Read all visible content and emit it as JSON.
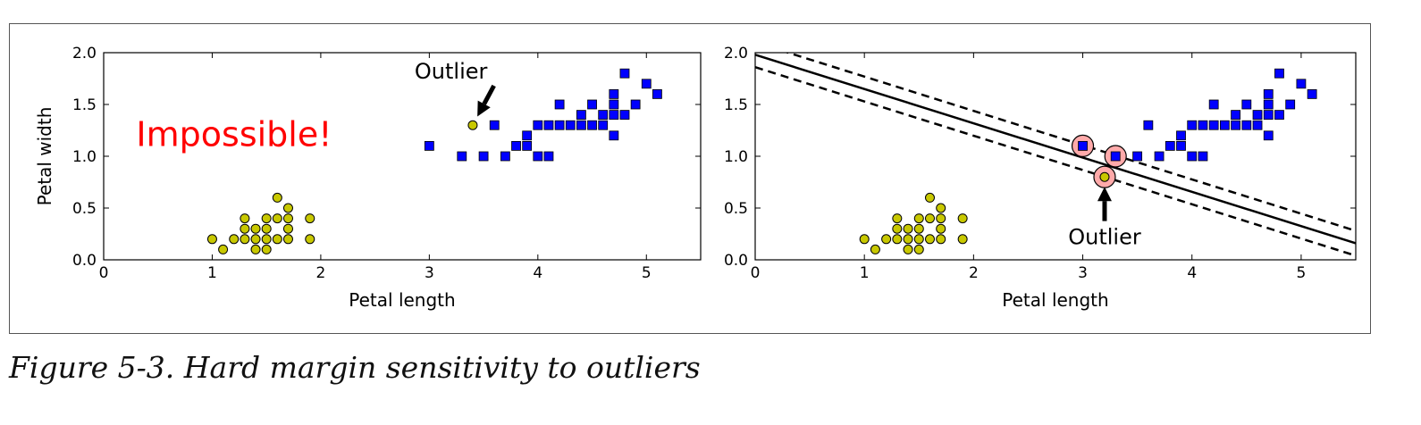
{
  "caption": "Figure 5-3. Hard margin sensitivity to outliers",
  "colors": {
    "class_yellow": "#c8c800",
    "class_blue": "#0000ff",
    "support_highlight": "#ffaaaa",
    "impossible_text": "#ff0000"
  },
  "chart_data": [
    {
      "type": "scatter",
      "title": "",
      "xlabel": "Petal length",
      "ylabel": "Petal width",
      "xlim": [
        0,
        5.5
      ],
      "ylim": [
        0,
        2.0
      ],
      "xticks": [
        "0",
        "1",
        "2",
        "3",
        "4",
        "5"
      ],
      "yticks": [
        "0.0",
        "0.5",
        "1.0",
        "1.5",
        "2.0"
      ],
      "grid": false,
      "series": [
        {
          "marker": "circle",
          "color": "#c8c800",
          "points": [
            [
              1.0,
              0.2
            ],
            [
              1.1,
              0.1
            ],
            [
              1.2,
              0.2
            ],
            [
              1.3,
              0.2
            ],
            [
              1.3,
              0.3
            ],
            [
              1.3,
              0.4
            ],
            [
              1.4,
              0.1
            ],
            [
              1.4,
              0.2
            ],
            [
              1.4,
              0.3
            ],
            [
              1.5,
              0.1
            ],
            [
              1.5,
              0.2
            ],
            [
              1.5,
              0.3
            ],
            [
              1.5,
              0.4
            ],
            [
              1.6,
              0.2
            ],
            [
              1.6,
              0.6
            ],
            [
              1.6,
              0.4
            ],
            [
              1.7,
              0.2
            ],
            [
              1.7,
              0.3
            ],
            [
              1.7,
              0.4
            ],
            [
              1.7,
              0.5
            ],
            [
              1.9,
              0.2
            ],
            [
              1.9,
              0.4
            ],
            [
              3.4,
              1.3
            ]
          ]
        },
        {
          "marker": "square",
          "color": "#0000ff",
          "points": [
            [
              3.0,
              1.1
            ],
            [
              3.3,
              1.0
            ],
            [
              3.5,
              1.0
            ],
            [
              3.6,
              1.3
            ],
            [
              3.7,
              1.0
            ],
            [
              3.8,
              1.1
            ],
            [
              3.9,
              1.1
            ],
            [
              3.9,
              1.2
            ],
            [
              4.0,
              1.0
            ],
            [
              4.0,
              1.3
            ],
            [
              4.1,
              1.0
            ],
            [
              4.1,
              1.3
            ],
            [
              4.2,
              1.3
            ],
            [
              4.2,
              1.5
            ],
            [
              4.3,
              1.3
            ],
            [
              4.4,
              1.3
            ],
            [
              4.4,
              1.4
            ],
            [
              4.5,
              1.3
            ],
            [
              4.5,
              1.5
            ],
            [
              4.6,
              1.3
            ],
            [
              4.6,
              1.4
            ],
            [
              4.7,
              1.2
            ],
            [
              4.7,
              1.4
            ],
            [
              4.7,
              1.5
            ],
            [
              4.7,
              1.6
            ],
            [
              4.8,
              1.4
            ],
            [
              4.8,
              1.8
            ],
            [
              4.9,
              1.5
            ],
            [
              5.0,
              1.7
            ],
            [
              5.1,
              1.6
            ]
          ]
        }
      ],
      "annotations": [
        {
          "text": "Impossible!",
          "at": [
            0.3,
            1.1
          ],
          "color": "#ff0000"
        },
        {
          "text": "Outlier",
          "point": [
            3.4,
            1.3
          ],
          "text_at": [
            3.2,
            1.75
          ]
        }
      ]
    },
    {
      "type": "scatter",
      "title": "",
      "xlabel": "Petal length",
      "ylabel": "",
      "xlim": [
        0,
        5.5
      ],
      "ylim": [
        0,
        2.0
      ],
      "xticks": [
        "0",
        "1",
        "2",
        "3",
        "4",
        "5"
      ],
      "yticks": [
        "0.0",
        "0.5",
        "1.0",
        "1.5",
        "2.0"
      ],
      "grid": false,
      "series": [
        {
          "marker": "circle",
          "color": "#c8c800",
          "points": [
            [
              1.0,
              0.2
            ],
            [
              1.1,
              0.1
            ],
            [
              1.2,
              0.2
            ],
            [
              1.3,
              0.2
            ],
            [
              1.3,
              0.3
            ],
            [
              1.3,
              0.4
            ],
            [
              1.4,
              0.1
            ],
            [
              1.4,
              0.2
            ],
            [
              1.4,
              0.3
            ],
            [
              1.5,
              0.1
            ],
            [
              1.5,
              0.2
            ],
            [
              1.5,
              0.3
            ],
            [
              1.5,
              0.4
            ],
            [
              1.6,
              0.2
            ],
            [
              1.6,
              0.6
            ],
            [
              1.6,
              0.4
            ],
            [
              1.7,
              0.2
            ],
            [
              1.7,
              0.3
            ],
            [
              1.7,
              0.4
            ],
            [
              1.7,
              0.5
            ],
            [
              1.9,
              0.2
            ],
            [
              1.9,
              0.4
            ],
            [
              3.2,
              0.8
            ]
          ]
        },
        {
          "marker": "square",
          "color": "#0000ff",
          "points": [
            [
              3.0,
              1.1
            ],
            [
              3.3,
              1.0
            ],
            [
              3.5,
              1.0
            ],
            [
              3.6,
              1.3
            ],
            [
              3.7,
              1.0
            ],
            [
              3.8,
              1.1
            ],
            [
              3.9,
              1.1
            ],
            [
              3.9,
              1.2
            ],
            [
              4.0,
              1.0
            ],
            [
              4.0,
              1.3
            ],
            [
              4.1,
              1.0
            ],
            [
              4.1,
              1.3
            ],
            [
              4.2,
              1.3
            ],
            [
              4.2,
              1.5
            ],
            [
              4.3,
              1.3
            ],
            [
              4.4,
              1.3
            ],
            [
              4.4,
              1.4
            ],
            [
              4.5,
              1.3
            ],
            [
              4.5,
              1.5
            ],
            [
              4.6,
              1.3
            ],
            [
              4.6,
              1.4
            ],
            [
              4.7,
              1.2
            ],
            [
              4.7,
              1.4
            ],
            [
              4.7,
              1.5
            ],
            [
              4.7,
              1.6
            ],
            [
              4.8,
              1.4
            ],
            [
              4.8,
              1.8
            ],
            [
              4.9,
              1.5
            ],
            [
              5.0,
              1.7
            ],
            [
              5.1,
              1.6
            ]
          ]
        }
      ],
      "support_vectors": [
        [
          3.0,
          1.1
        ],
        [
          3.3,
          1.0
        ],
        [
          3.2,
          0.8
        ]
      ],
      "decision_boundary": {
        "style": "solid",
        "from": [
          0,
          1.98
        ],
        "to": [
          5.5,
          0.16
        ]
      },
      "margins": [
        {
          "style": "dashed",
          "from": [
            0,
            2.1
          ],
          "to": [
            5.5,
            0.28
          ]
        },
        {
          "style": "dashed",
          "from": [
            0,
            1.86
          ],
          "to": [
            5.5,
            0.04
          ]
        }
      ],
      "annotations": [
        {
          "text": "Outlier",
          "point": [
            3.2,
            0.8
          ],
          "text_at": [
            3.2,
            0.15
          ]
        }
      ]
    }
  ]
}
